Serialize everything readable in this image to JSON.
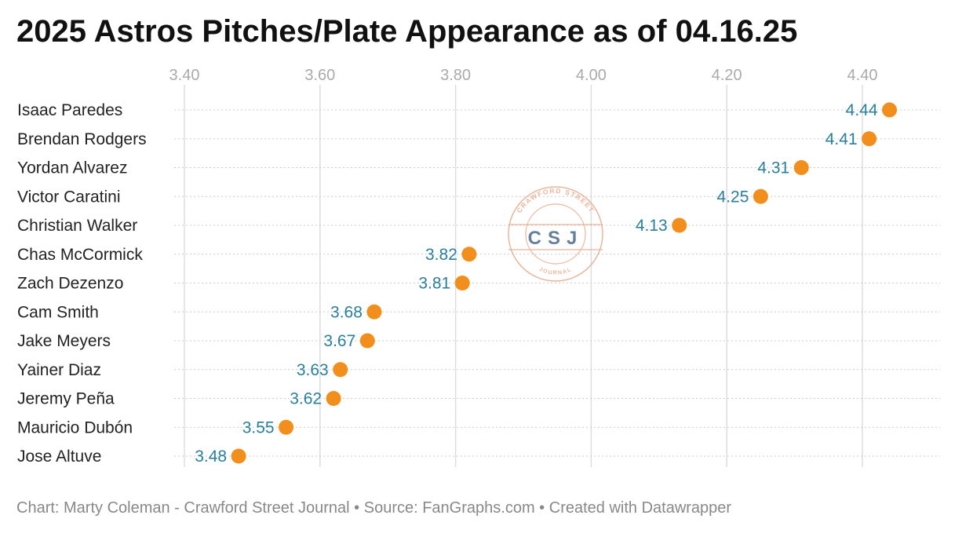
{
  "title": "2025 Astros Pitches/Plate Appearance as of 04.16.25",
  "footer": {
    "credit": "Chart: Marty Coleman - Crawford Street Journal",
    "sep1": "•",
    "source": "Source: FanGraphs.com",
    "sep2": "•",
    "tool": "Created with Datawrapper"
  },
  "watermark": {
    "arc_top": "CRAWFORD STREET",
    "monogram": "CSJ",
    "arc_bottom": "JOURNAL",
    "color": "#e8a98a"
  },
  "colors": {
    "dot": "#f28e1c",
    "label": "#2a7f9a",
    "grid": "#dddddd",
    "tick": "#aaaaaa",
    "name": "#222222"
  },
  "chart_data": {
    "type": "scatter",
    "title": "2025 Astros Pitches/Plate Appearance as of 04.16.25",
    "xlabel": "",
    "ylabel": "",
    "xlim": [
      3.38,
      4.49
    ],
    "x_ticks": [
      3.4,
      3.6,
      3.8,
      4.0,
      4.2,
      4.4
    ],
    "x_tick_labels": [
      "3.40",
      "3.60",
      "3.80",
      "4.00",
      "4.20",
      "4.40"
    ],
    "x_axis_position": "top",
    "grid": true,
    "categories": [
      "Isaac Paredes",
      "Brendan Rodgers",
      "Yordan Alvarez",
      "Victor Caratini",
      "Christian Walker",
      "Chas McCormick",
      "Zach Dezenzo",
      "Cam Smith",
      "Jake Meyers",
      "Yainer Diaz",
      "Jeremy Peña",
      "Mauricio Dubón",
      "Jose Altuve"
    ],
    "values": [
      4.44,
      4.41,
      4.31,
      4.25,
      4.13,
      3.82,
      3.81,
      3.68,
      3.67,
      3.63,
      3.62,
      3.55,
      3.48
    ],
    "value_labels": [
      "4.44",
      "4.41",
      "4.31",
      "4.25",
      "4.13",
      "3.82",
      "3.81",
      "3.68",
      "3.67",
      "3.63",
      "3.62",
      "3.55",
      "3.48"
    ]
  }
}
